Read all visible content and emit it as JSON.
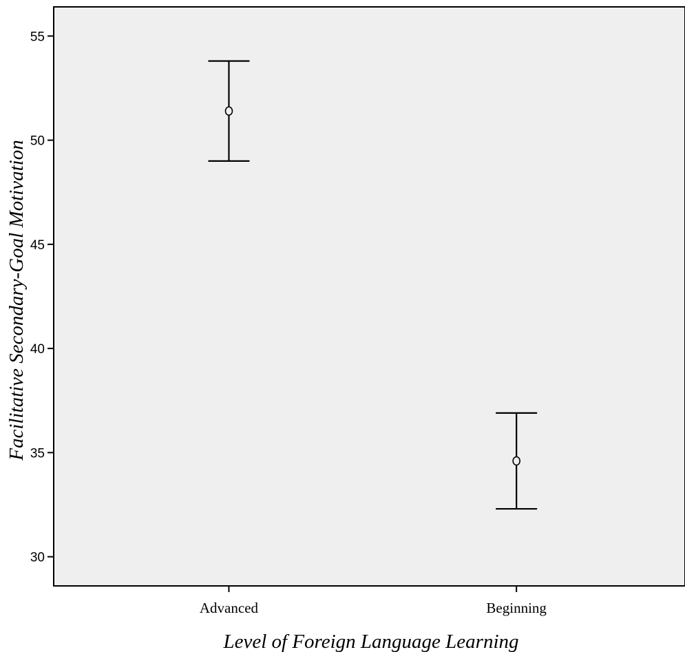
{
  "chart_data": {
    "type": "scatter",
    "subtype": "error-bar",
    "title": "",
    "xlabel": "Level of Foreign Language Learning",
    "ylabel": "Facilitative Secondary-Goal Motivation",
    "categories": [
      "Advanced",
      "Beginning"
    ],
    "series": [
      {
        "values": [
          51.4,
          34.6
        ],
        "lower": [
          49.0,
          32.3
        ],
        "upper": [
          53.8,
          36.9
        ]
      }
    ],
    "ylim": [
      28.6,
      56.4
    ],
    "yticks": [
      "30",
      "35",
      "40",
      "45",
      "50",
      "55"
    ],
    "ytick_values": [
      30,
      35,
      40,
      45,
      50,
      55
    ],
    "grid": false,
    "legend": "none",
    "colors": {
      "plot_background": "#efefef",
      "marks": "#000000"
    }
  }
}
